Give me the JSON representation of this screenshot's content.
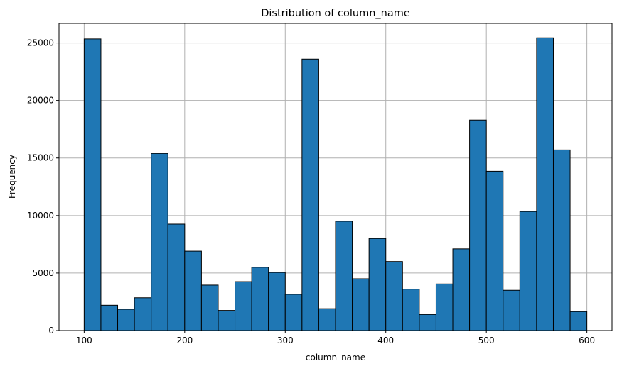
{
  "chart_data": {
    "type": "bar",
    "subtype": "histogram",
    "title": "Distribution of column_name",
    "xlabel": "column_name",
    "ylabel": "Frequency",
    "xlim": [
      75,
      625
    ],
    "ylim": [
      0,
      26700
    ],
    "grid": true,
    "bar_color": "#1f77b4",
    "edge_color": "#000000",
    "bin_edges": [
      100,
      116.67,
      133.33,
      150,
      166.67,
      183.33,
      200,
      216.67,
      233.33,
      250,
      266.67,
      283.33,
      300,
      316.67,
      333.33,
      350,
      366.67,
      383.33,
      400,
      416.67,
      433.33,
      450,
      466.67,
      483.33,
      500,
      516.67,
      533.33,
      550,
      566.67,
      583.33,
      600
    ],
    "values": [
      25350,
      2200,
      1850,
      2850,
      15400,
      9250,
      6900,
      3950,
      1750,
      4250,
      5500,
      5050,
      3150,
      23600,
      1900,
      9500,
      4500,
      8000,
      6000,
      3600,
      1400,
      4050,
      7100,
      18300,
      13850,
      3500,
      10350,
      25450,
      15700,
      1650
    ],
    "x_ticks": [
      100,
      200,
      300,
      400,
      500,
      600
    ],
    "x_tick_labels": [
      "100",
      "200",
      "300",
      "400",
      "500",
      "600"
    ],
    "y_ticks": [
      0,
      5000,
      10000,
      15000,
      20000,
      25000
    ],
    "y_tick_labels": [
      "0",
      "5000",
      "10000",
      "15000",
      "20000",
      "25000"
    ]
  }
}
